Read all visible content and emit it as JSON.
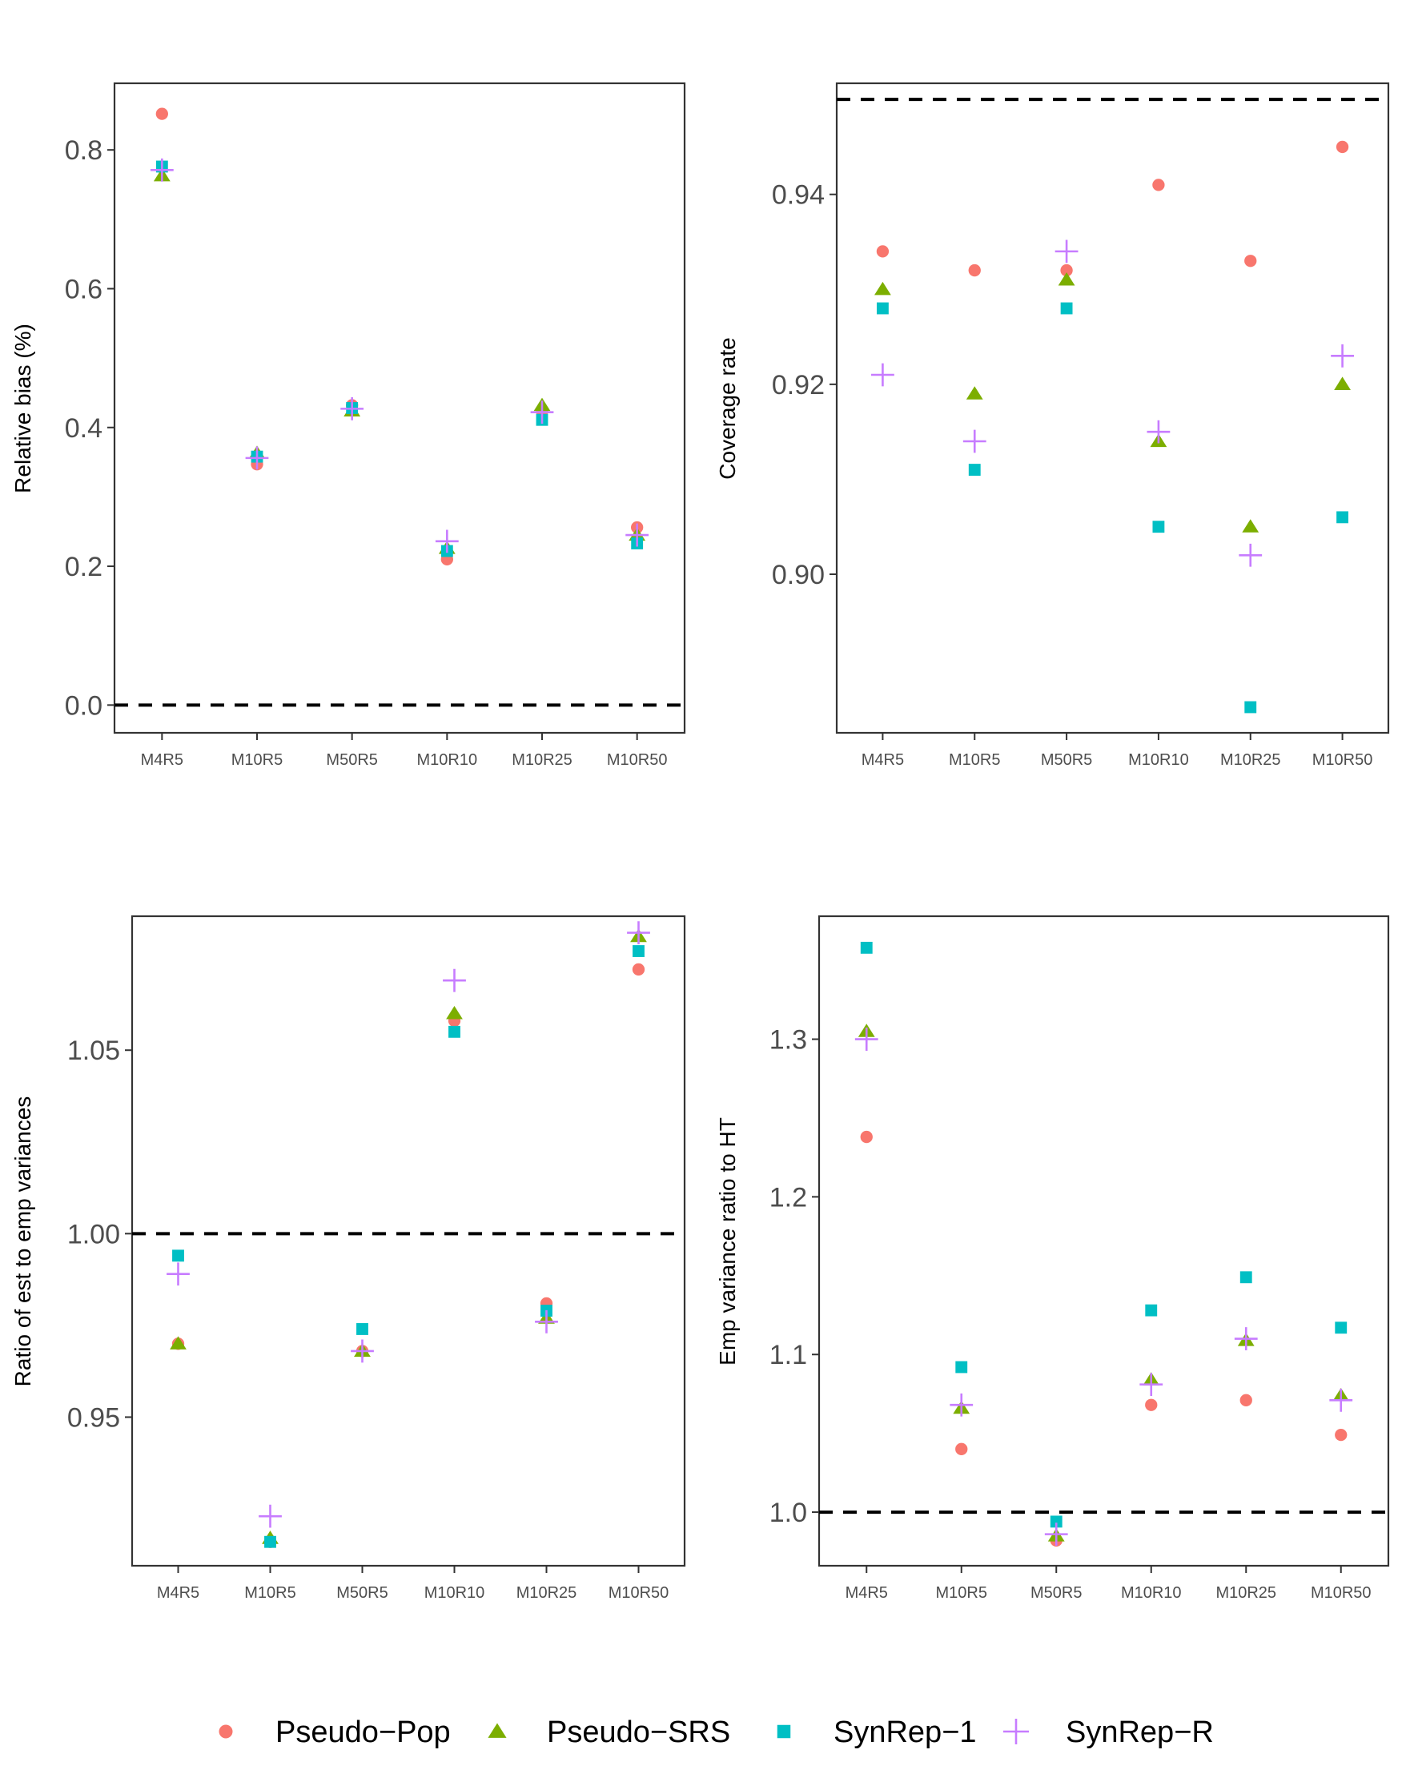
{
  "colors": {
    "Pseudo-Pop": "#F8766D",
    "Pseudo-SRS": "#7CAE00",
    "SynRep-1": "#00BFC4",
    "SynRep-R": "#C77CFF"
  },
  "legend": {
    "items": [
      {
        "label": "Pseudo−Pop",
        "shape": "circle",
        "color": "#F8766D"
      },
      {
        "label": "Pseudo−SRS",
        "shape": "triangle",
        "color": "#7CAE00"
      },
      {
        "label": "SynRep−1",
        "shape": "square",
        "color": "#00BFC4"
      },
      {
        "label": "SynRep−R",
        "shape": "plus",
        "color": "#C77CFF"
      }
    ],
    "placement": "bottom"
  },
  "chart_data": [
    {
      "type": "scatter",
      "ylabel": "Relative bias (%)",
      "categories": [
        "M4R5",
        "M10R5",
        "M50R5",
        "M10R10",
        "M10R25",
        "M10R50"
      ],
      "ylim": [
        -0.04,
        0.896
      ],
      "yticks": [
        0.0,
        0.2,
        0.4,
        0.6,
        0.8
      ],
      "ytick_labels": [
        "0.0",
        "0.2",
        "0.4",
        "0.6",
        "0.8"
      ],
      "hline": 0.0,
      "series": [
        {
          "name": "Pseudo-Pop",
          "values": [
            0.852,
            0.347,
            0.432,
            0.21,
            0.423,
            0.256
          ]
        },
        {
          "name": "Pseudo-SRS",
          "values": [
            0.763,
            0.363,
            0.424,
            0.226,
            0.432,
            0.245
          ]
        },
        {
          "name": "SynRep-1",
          "values": [
            0.776,
            0.358,
            0.428,
            0.222,
            0.411,
            0.233
          ]
        },
        {
          "name": "SynRep-R",
          "values": [
            0.771,
            0.356,
            0.427,
            0.236,
            0.422,
            0.245
          ]
        }
      ]
    },
    {
      "type": "scatter",
      "ylabel": "Coverage rate",
      "categories": [
        "M4R5",
        "M10R5",
        "M50R5",
        "M10R10",
        "M10R25",
        "M10R50"
      ],
      "ylim": [
        0.8833,
        0.9517
      ],
      "yticks": [
        0.9,
        0.92,
        0.94
      ],
      "ytick_labels": [
        "0.90",
        "0.92",
        "0.94"
      ],
      "hline": 0.95,
      "series": [
        {
          "name": "Pseudo-Pop",
          "values": [
            0.934,
            0.932,
            0.932,
            0.941,
            0.933,
            0.945
          ]
        },
        {
          "name": "Pseudo-SRS",
          "values": [
            0.93,
            0.919,
            0.931,
            0.914,
            0.905,
            0.92
          ]
        },
        {
          "name": "SynRep-1",
          "values": [
            0.928,
            0.911,
            0.928,
            0.905,
            0.886,
            0.906
          ]
        },
        {
          "name": "SynRep-R",
          "values": [
            0.921,
            0.914,
            0.934,
            0.915,
            0.902,
            0.923
          ]
        }
      ]
    },
    {
      "type": "scatter",
      "ylabel": "Ratio of est to emp variances",
      "categories": [
        "M4R5",
        "M10R5",
        "M50R5",
        "M10R10",
        "M10R25",
        "M10R50"
      ],
      "ylim": [
        0.9095,
        1.0865
      ],
      "yticks": [
        0.95,
        1.0,
        1.05
      ],
      "ytick_labels": [
        "0.95",
        "1.00",
        "1.05"
      ],
      "hline": 1.0,
      "series": [
        {
          "name": "Pseudo-Pop",
          "values": [
            0.97,
            0.916,
            0.968,
            1.058,
            0.981,
            1.072
          ]
        },
        {
          "name": "Pseudo-SRS",
          "values": [
            0.97,
            0.917,
            0.968,
            1.06,
            0.977,
            1.081
          ]
        },
        {
          "name": "SynRep-1",
          "values": [
            0.994,
            0.916,
            0.974,
            1.055,
            0.979,
            1.077
          ]
        },
        {
          "name": "SynRep-R",
          "values": [
            0.989,
            0.923,
            0.968,
            1.069,
            0.976,
            1.082
          ]
        }
      ]
    },
    {
      "type": "scatter",
      "ylabel": "Emp variance ratio to HT",
      "categories": [
        "M4R5",
        "M10R5",
        "M50R5",
        "M10R10",
        "M10R25",
        "M10R50"
      ],
      "ylim": [
        0.966,
        1.378
      ],
      "yticks": [
        1.0,
        1.1,
        1.2,
        1.3
      ],
      "ytick_labels": [
        "1.0",
        "1.1",
        "1.2",
        "1.3"
      ],
      "hline": 1.0,
      "series": [
        {
          "name": "Pseudo-Pop",
          "values": [
            1.238,
            1.04,
            0.982,
            1.068,
            1.071,
            1.049
          ]
        },
        {
          "name": "Pseudo-SRS",
          "values": [
            1.305,
            1.066,
            0.985,
            1.084,
            1.109,
            1.074
          ]
        },
        {
          "name": "SynRep-1",
          "values": [
            1.358,
            1.092,
            0.994,
            1.128,
            1.149,
            1.117
          ]
        },
        {
          "name": "SynRep-R",
          "values": [
            1.3,
            1.068,
            0.986,
            1.081,
            1.11,
            1.071
          ]
        }
      ]
    }
  ]
}
